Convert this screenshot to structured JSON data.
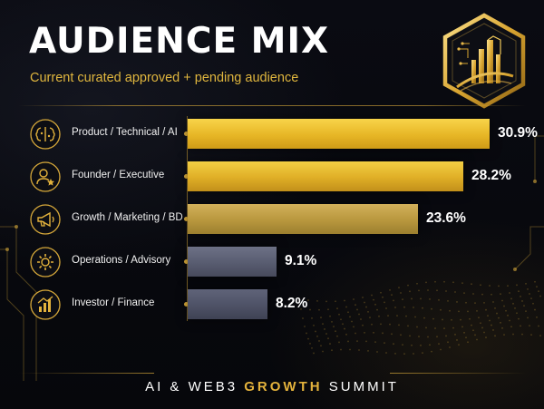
{
  "chart_data": {
    "type": "bar",
    "orientation": "horizontal",
    "title": "AUDIENCE MIX",
    "subtitle": "Current curated approved + pending audience",
    "categories": [
      "Product / Technical / AI",
      "Founder / Executive",
      "Growth / Marketing / BD",
      "Operations / Advisory",
      "Investor / Finance"
    ],
    "values": [
      30.9,
      28.2,
      23.6,
      9.1,
      8.2
    ],
    "value_labels": [
      "30.9%",
      "28.2%",
      "23.6%",
      "9.1%",
      "8.2%"
    ],
    "unit": "%",
    "xlim": [
      0,
      32
    ],
    "grid": false,
    "legend": "none"
  },
  "category_icons": [
    "brain-chip-icon",
    "person-star-icon",
    "megaphone-icon",
    "gear-icon",
    "bar-growth-icon"
  ],
  "bar_styles": [
    "gold",
    "gold2",
    "tan",
    "slate",
    "slate2"
  ],
  "footer": {
    "part1": "AI & WEB3 ",
    "accent": "GROWTH",
    "part2": " SUMMIT"
  },
  "colors": {
    "background": "#07080d",
    "gold": "#e3b23c",
    "slate": "#585c70",
    "text": "#ffffff"
  }
}
